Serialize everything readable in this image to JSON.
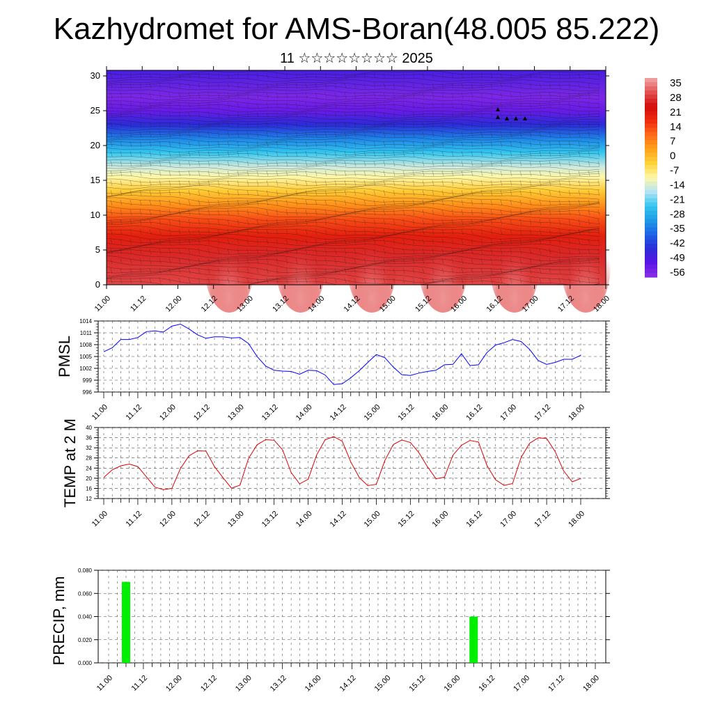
{
  "title": "Kazhydromet for AMS-Boran(48.005 85.222)",
  "subtitle": "11 ☆☆☆☆☆☆☆☆ 2025",
  "time_labels": [
    "11.00",
    "11.12",
    "12.00",
    "12.12",
    "13.00",
    "13.12",
    "14.00",
    "14.12",
    "15.00",
    "15.12",
    "16.00",
    "16.12",
    "17.00",
    "17.12",
    "18.00"
  ],
  "chart_data": [
    {
      "type": "heatmap",
      "name": "wind-temperature cross-section",
      "x_ticks": [
        "11.00",
        "11.12",
        "12.00",
        "12.12",
        "13.00",
        "13.12",
        "14.00",
        "14.12",
        "15.00",
        "15.12",
        "16.00",
        "16.12",
        "17.00",
        "17.12",
        "18.00"
      ],
      "y_ticks": [
        0,
        5,
        10,
        15,
        20,
        25,
        30
      ],
      "ylim": [
        0,
        30.8
      ],
      "colorbar": {
        "labels": [
          "35",
          "28",
          "21",
          "14",
          "7",
          "0",
          "-7",
          "-14",
          "-21",
          "-28",
          "-35",
          "-42",
          "-49",
          "-56"
        ],
        "range": [
          -60,
          38
        ],
        "colors": [
          "#8a2ee6",
          "#5a14e6",
          "#2b2bd8",
          "#1d62e6",
          "#1f9be6",
          "#33c6f0",
          "#b5e3f5",
          "#fff7a8",
          "#ffd23a",
          "#ffa21a",
          "#ff6a1a",
          "#ef2b10",
          "#d20c0c",
          "#e45050",
          "#f0a8a8"
        ]
      },
      "temperature_profile": [
        {
          "height": 0,
          "temp": 30
        },
        {
          "height": 4,
          "temp": 27
        },
        {
          "height": 7,
          "temp": 20
        },
        {
          "height": 9.5,
          "temp": 13
        },
        {
          "height": 11.5,
          "temp": 5
        },
        {
          "height": 13.5,
          "temp": -3
        },
        {
          "height": 15.5,
          "temp": -11
        },
        {
          "height": 17,
          "temp": -16
        },
        {
          "height": 19,
          "temp": -25
        },
        {
          "height": 21,
          "temp": -35
        },
        {
          "height": 23,
          "temp": -46
        },
        {
          "height": 25,
          "temp": -55
        },
        {
          "height": 27,
          "temp": -58
        },
        {
          "height": 30.8,
          "temp": -50
        }
      ],
      "surface_warm_maxima": [
        {
          "x": 1.72,
          "temp": 35
        },
        {
          "x": 2.72,
          "temp": 36
        },
        {
          "x": 3.72,
          "temp": 34
        },
        {
          "x": 4.72,
          "temp": 34
        },
        {
          "x": 5.72,
          "temp": 35
        },
        {
          "x": 6.72,
          "temp": 36
        }
      ]
    },
    {
      "type": "line",
      "ylabel": "PMSL",
      "yticks": [
        996,
        999,
        1002,
        1005,
        1008,
        1011,
        1014
      ],
      "ylim": [
        996,
        1014
      ],
      "x_ticks": [
        "11.00",
        "11.12",
        "12.00",
        "12.12",
        "13.00",
        "13.12",
        "14.00",
        "14.12",
        "15.00",
        "15.12",
        "16.00",
        "16.12",
        "17.00",
        "17.12",
        "18.00"
      ],
      "x": [
        0,
        0.125,
        0.25,
        0.375,
        0.5,
        0.625,
        0.75,
        0.875,
        1,
        1.125,
        1.25,
        1.375,
        1.5,
        1.625,
        1.75,
        1.875,
        2,
        2.125,
        2.25,
        2.375,
        2.5,
        2.625,
        2.75,
        2.875,
        3,
        3.125,
        3.25,
        3.375,
        3.5,
        3.625,
        3.75,
        3.875,
        4,
        4.125,
        4.25,
        4.375,
        4.5,
        4.625,
        4.75,
        4.875,
        5,
        5.125,
        5.25,
        5.375,
        5.5,
        5.625,
        5.75,
        5.875,
        6,
        6.125,
        6.25,
        6.375,
        6.5,
        6.625,
        6.75,
        6.875,
        7
      ],
      "values": [
        1006.2,
        1007.2,
        1009.3,
        1009.3,
        1009.8,
        1011.3,
        1011.5,
        1011.2,
        1012.7,
        1013.2,
        1012.0,
        1010.5,
        1009.6,
        1010.0,
        1010.0,
        1009.7,
        1009.8,
        1008.3,
        1005.0,
        1002.6,
        1001.5,
        1001.3,
        1001.2,
        1000.5,
        1001.5,
        1001.4,
        1000.3,
        997.9,
        998.1,
        999.6,
        1001.4,
        1003.5,
        1005.5,
        1004.7,
        1002.3,
        1000.4,
        1000.2,
        1000.8,
        1001.2,
        1001.5,
        1002.9,
        1003.0,
        1005.7,
        1002.7,
        1002.9,
        1006.0,
        1007.9,
        1008.5,
        1009.3,
        1008.8,
        1006.8,
        1004.0,
        1003.0,
        1003.5,
        1004.3,
        1004.3,
        1005.3
      ],
      "color": "#0000ff"
    },
    {
      "type": "line",
      "ylabel": "TEMP at 2 M",
      "yticks": [
        12,
        16,
        20,
        24,
        28,
        32,
        36,
        40
      ],
      "ylim": [
        12,
        40
      ],
      "x_ticks": [
        "11.00",
        "11.12",
        "12.00",
        "12.12",
        "13.00",
        "13.12",
        "14.00",
        "14.12",
        "15.00",
        "15.12",
        "16.00",
        "16.12",
        "17.00",
        "17.12",
        "18.00"
      ],
      "x": [
        0,
        0.125,
        0.25,
        0.375,
        0.5,
        0.625,
        0.75,
        0.875,
        1,
        1.125,
        1.25,
        1.375,
        1.5,
        1.625,
        1.75,
        1.875,
        2,
        2.125,
        2.25,
        2.375,
        2.5,
        2.625,
        2.75,
        2.875,
        3,
        3.125,
        3.25,
        3.375,
        3.5,
        3.625,
        3.75,
        3.875,
        4,
        4.125,
        4.25,
        4.375,
        4.5,
        4.625,
        4.75,
        4.875,
        5,
        5.125,
        5.25,
        5.375,
        5.5,
        5.625,
        5.75,
        5.875,
        6,
        6.125,
        6.25,
        6.375,
        6.5,
        6.625,
        6.75,
        6.875,
        7
      ],
      "values": [
        20.3,
        23.3,
        24.9,
        25.6,
        24.6,
        20.6,
        16.5,
        15.5,
        16.0,
        23.8,
        28.8,
        30.8,
        30.7,
        24.6,
        20.2,
        16.1,
        17.3,
        27.8,
        33.2,
        35.2,
        35.0,
        31.2,
        22.3,
        17.8,
        19.6,
        29.2,
        35.2,
        36.4,
        34.6,
        26.5,
        20.3,
        17.1,
        17.6,
        27.0,
        33.3,
        35.1,
        34.1,
        30.1,
        24.6,
        19.8,
        20.4,
        29.1,
        33.0,
        34.9,
        34.3,
        25.0,
        19.4,
        17.2,
        17.9,
        28.2,
        33.8,
        35.9,
        35.7,
        30.5,
        22.9,
        18.6,
        19.9
      ],
      "color": "#e00000"
    },
    {
      "type": "bar",
      "ylabel": "PRECIP, mm",
      "yticks": [
        "0.000",
        "0.020",
        "0.040",
        "0.060",
        "0.080"
      ],
      "ylim": [
        0,
        0.08
      ],
      "x_ticks": [
        "11.00",
        "11.12",
        "12.00",
        "12.12",
        "13.00",
        "13.12",
        "14.00",
        "14.12",
        "15.00",
        "15.12",
        "16.00",
        "16.12",
        "17.00",
        "17.12",
        "18.00"
      ],
      "bars": [
        {
          "x": 0.25,
          "value": 0.07
        },
        {
          "x": 5.25,
          "value": 0.04
        }
      ],
      "color": "#00ee00"
    }
  ]
}
